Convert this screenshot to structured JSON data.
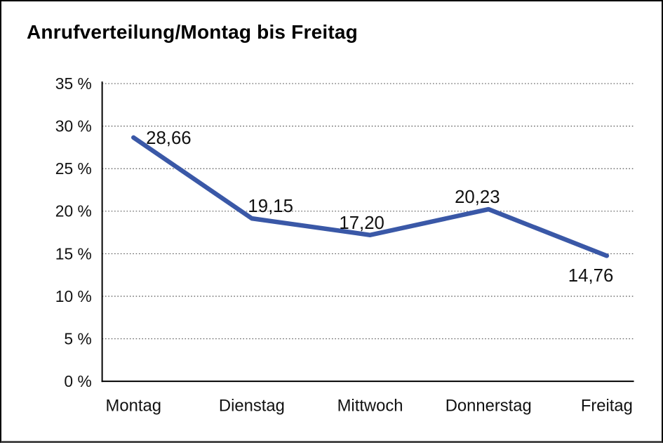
{
  "chart_data": {
    "type": "line",
    "title": "Anrufverteilung/Montag bis Freitag",
    "categories": [
      "Montag",
      "Dienstag",
      "Mittwoch",
      "Donnerstag",
      "Freitag"
    ],
    "series": [
      {
        "name": "Anrufverteilung",
        "values": [
          28.66,
          19.15,
          17.2,
          20.23,
          14.76
        ],
        "data_labels": [
          "28,66",
          "19,15",
          "17,20",
          "20,23",
          "14,76"
        ]
      }
    ],
    "xlabel": "",
    "ylabel": "",
    "ylim": [
      0,
      35
    ],
    "y_tick_step": 5,
    "y_ticks": [
      {
        "value": 0,
        "label": "0 %"
      },
      {
        "value": 5,
        "label": "5 %"
      },
      {
        "value": 10,
        "label": "10 %"
      },
      {
        "value": 15,
        "label": "15 %"
      },
      {
        "value": 20,
        "label": "20 %"
      },
      {
        "value": 25,
        "label": "25 %"
      },
      {
        "value": 30,
        "label": "30 %"
      },
      {
        "value": 35,
        "label": "35 %"
      }
    ],
    "grid": "horizontal-dotted",
    "legend": "none",
    "colors": {
      "line": "#3A58A7",
      "axis": "#000000",
      "gridline": "#555555",
      "text": "#111111"
    }
  }
}
